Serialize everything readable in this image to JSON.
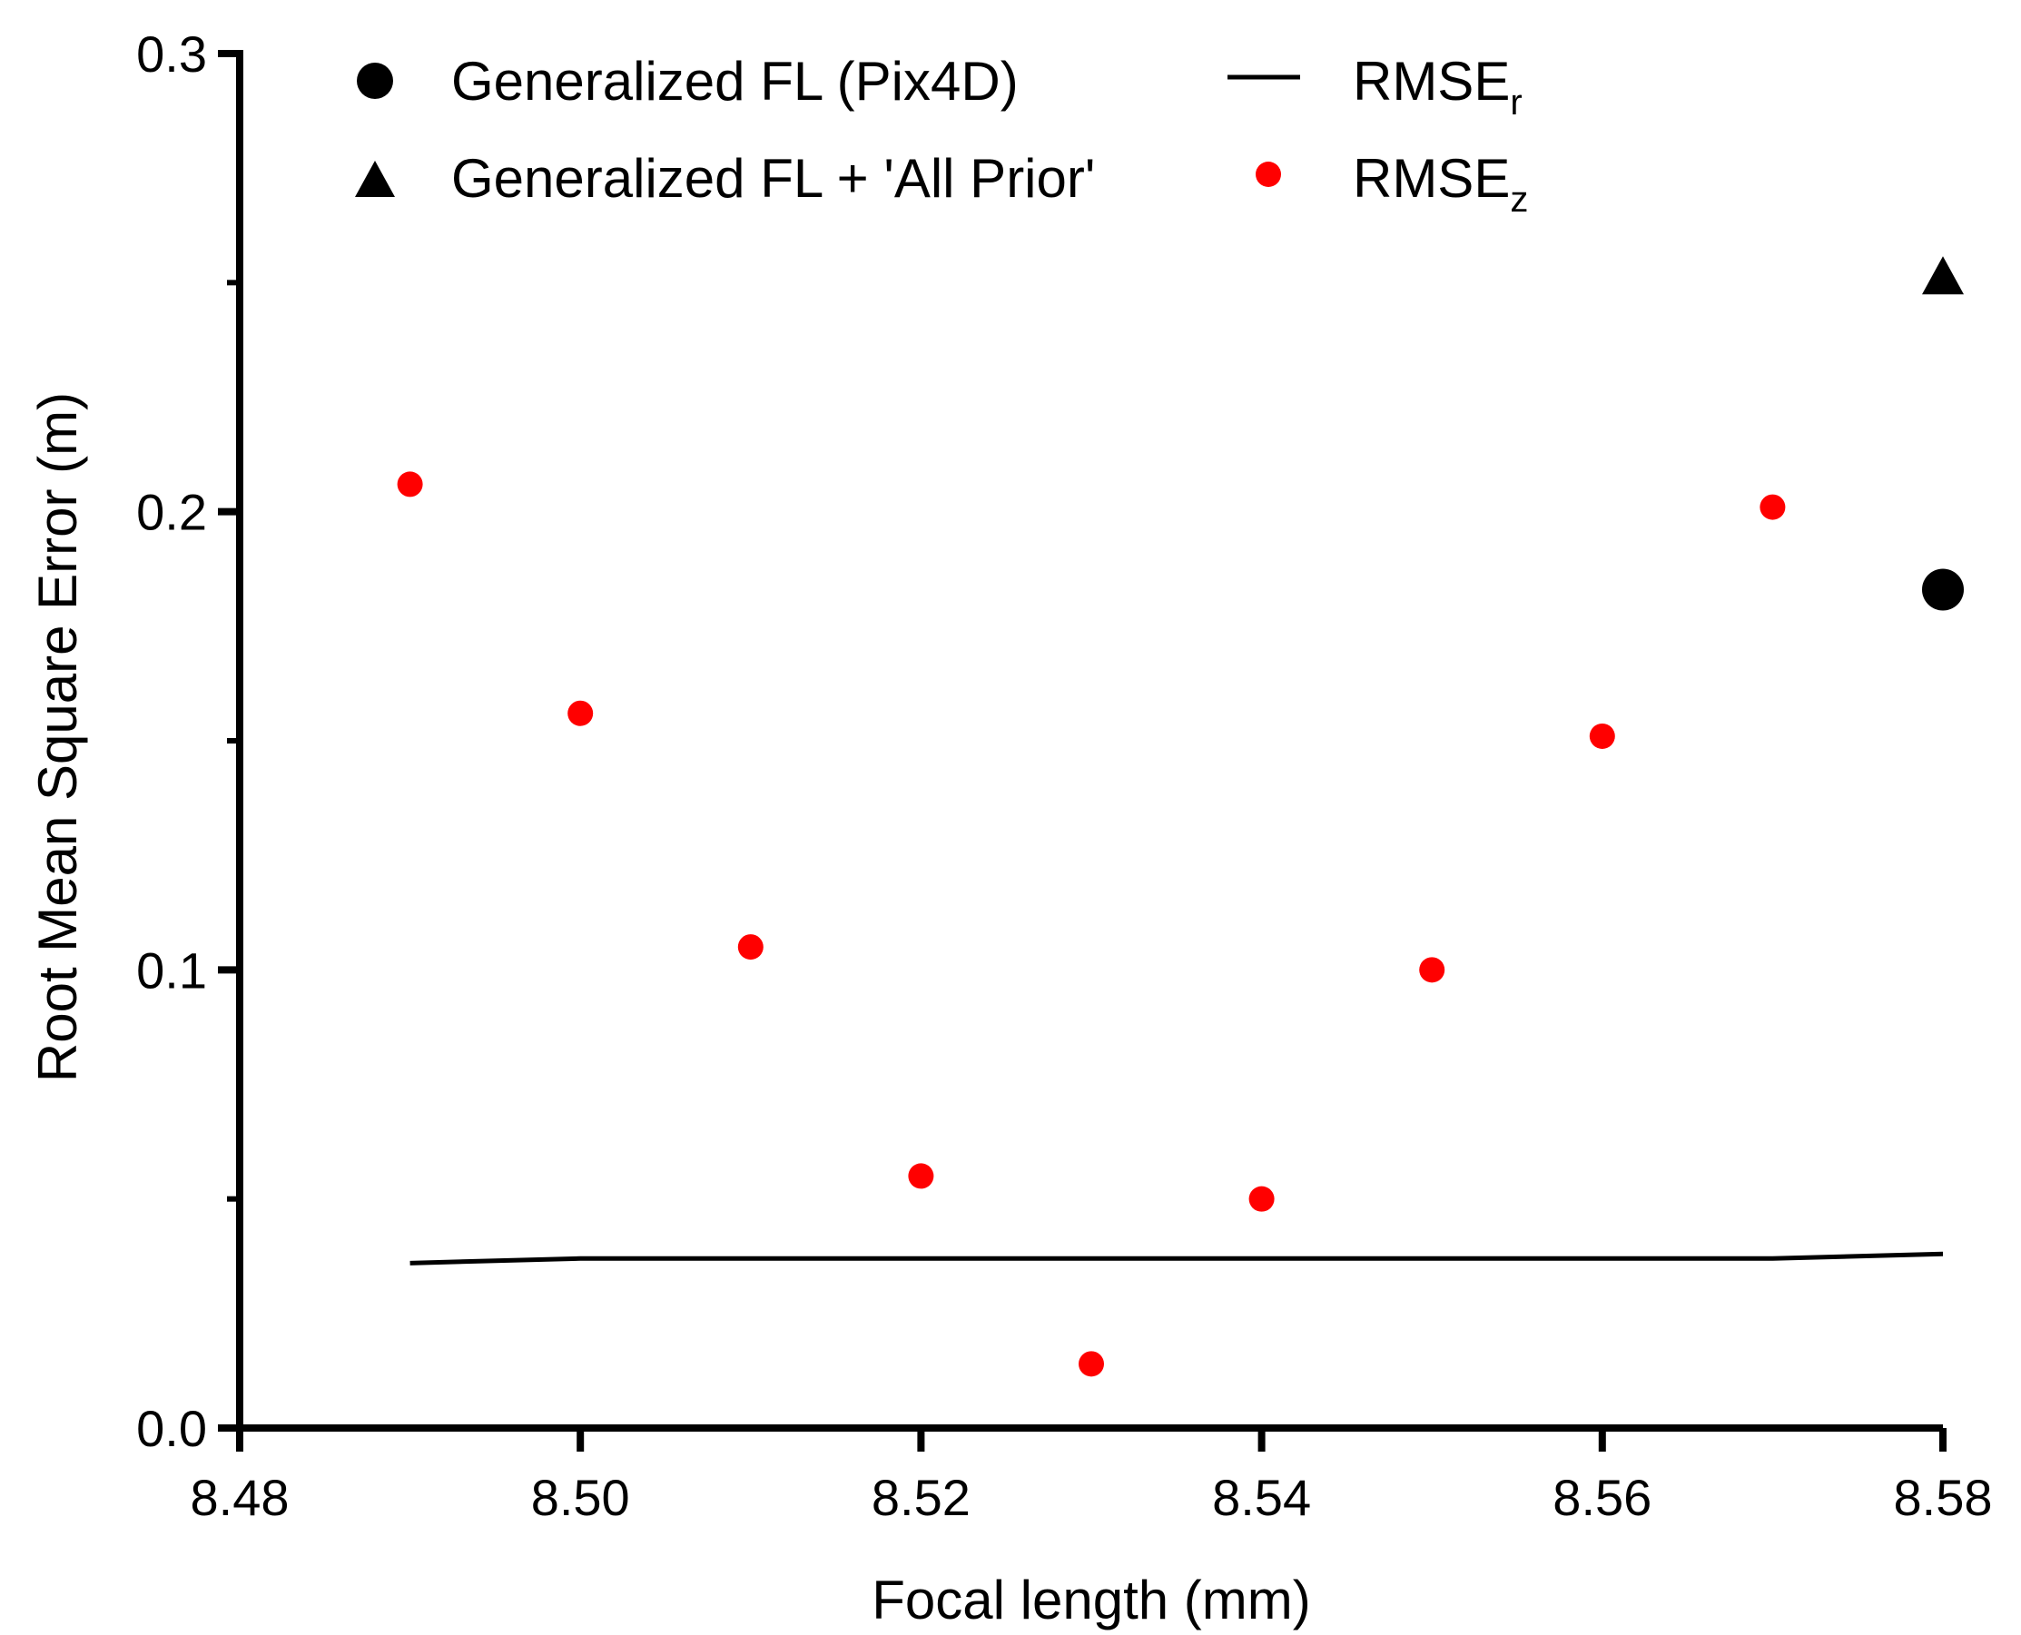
{
  "chart_data": {
    "type": "scatter",
    "title": "",
    "xlabel": "Focal length (mm)",
    "ylabel": "Root Mean Square Error (m)",
    "xlim": [
      8.48,
      8.58
    ],
    "ylim": [
      0.0,
      0.3
    ],
    "x_ticks": [
      "8.48",
      "8.50",
      "8.52",
      "8.54",
      "8.56",
      "8.58"
    ],
    "y_ticks": [
      "0.0",
      "0.1",
      "0.2",
      "0.3"
    ],
    "grid": false,
    "legend_position": "top",
    "series": [
      {
        "name": "Generalized FL (Pix4D)",
        "marker": "circle",
        "color": "#000000",
        "points": [
          {
            "x": 8.58,
            "y": 0.183
          }
        ]
      },
      {
        "name": "Generalized FL + 'All Prior'",
        "marker": "triangle",
        "color": "#000000",
        "points": [
          {
            "x": 8.58,
            "y": 0.251
          }
        ]
      },
      {
        "name": "RMSEr",
        "label_main": "RMSE",
        "label_sub": "r",
        "marker": "line",
        "color": "#000000",
        "points": [
          {
            "x": 8.49,
            "y": 0.036
          },
          {
            "x": 8.5,
            "y": 0.037
          },
          {
            "x": 8.51,
            "y": 0.037
          },
          {
            "x": 8.52,
            "y": 0.037
          },
          {
            "x": 8.53,
            "y": 0.037
          },
          {
            "x": 8.54,
            "y": 0.037
          },
          {
            "x": 8.55,
            "y": 0.037
          },
          {
            "x": 8.56,
            "y": 0.037
          },
          {
            "x": 8.57,
            "y": 0.037
          },
          {
            "x": 8.58,
            "y": 0.038
          }
        ]
      },
      {
        "name": "RMSEz",
        "label_main": "RMSE",
        "label_sub": "z",
        "marker": "circle",
        "color": "#ff0000",
        "points": [
          {
            "x": 8.49,
            "y": 0.206
          },
          {
            "x": 8.5,
            "y": 0.156
          },
          {
            "x": 8.51,
            "y": 0.105
          },
          {
            "x": 8.52,
            "y": 0.055
          },
          {
            "x": 8.53,
            "y": 0.014
          },
          {
            "x": 8.54,
            "y": 0.05
          },
          {
            "x": 8.55,
            "y": 0.1
          },
          {
            "x": 8.56,
            "y": 0.151
          },
          {
            "x": 8.57,
            "y": 0.201
          }
        ]
      }
    ]
  }
}
